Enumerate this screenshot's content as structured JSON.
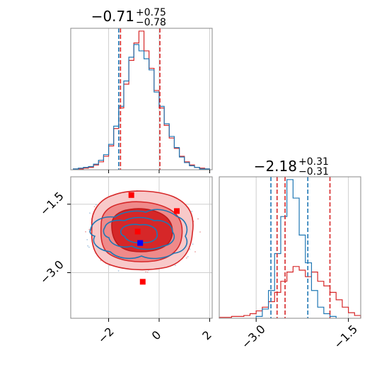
{
  "chart_data": [
    {
      "type": "histogram",
      "panel": "top-left",
      "title": {
        "base": "−0.71",
        "sup": "+0.75",
        "sub": "−0.78"
      },
      "xlim": [
        -3.5,
        2.1
      ],
      "x_ticks": [
        -2,
        0,
        2
      ],
      "x_tick_labels_shown": false,
      "grid": true,
      "quantile_lines": [
        {
          "series": "red",
          "values": [
            -1.53,
            0.03
          ]
        },
        {
          "series": "blue",
          "values": [
            -1.6
          ]
        }
      ],
      "series": [
        {
          "name": "red",
          "color": "#d62728",
          "style": "step",
          "x": [
            -3.3,
            -3.1,
            -2.9,
            -2.7,
            -2.5,
            -2.3,
            -2.1,
            -1.9,
            -1.7,
            -1.5,
            -1.3,
            -1.1,
            -0.9,
            -0.7,
            -0.5,
            -0.3,
            -0.1,
            0.1,
            0.3,
            0.5,
            0.7,
            0.9,
            1.1,
            1.3,
            1.5,
            1.7,
            1.9
          ],
          "y": [
            1,
            1,
            2,
            3,
            6,
            10,
            17,
            30,
            52,
            78,
            108,
            138,
            160,
            175,
            150,
            128,
            100,
            78,
            56,
            40,
            27,
            17,
            10,
            6,
            3,
            2,
            1
          ]
        },
        {
          "name": "blue",
          "color": "#1f77b4",
          "style": "step",
          "x": [
            -3.3,
            -3.1,
            -2.9,
            -2.7,
            -2.5,
            -2.3,
            -2.1,
            -1.9,
            -1.7,
            -1.5,
            -1.3,
            -1.1,
            -0.9,
            -0.7,
            -0.5,
            -0.3,
            -0.1,
            0.1,
            0.3,
            0.5,
            0.7,
            0.9,
            1.1,
            1.3,
            1.5,
            1.7,
            1.9
          ],
          "y": [
            1,
            2,
            3,
            4,
            7,
            12,
            19,
            32,
            55,
            80,
            112,
            142,
            158,
            150,
            140,
            126,
            98,
            80,
            58,
            42,
            28,
            16,
            9,
            5,
            3,
            1,
            1
          ]
        }
      ]
    },
    {
      "type": "histogram",
      "panel": "bottom-right",
      "title": {
        "base": "−2.18",
        "sup": "+0.31",
        "sub": "−0.31"
      },
      "xlim": [
        -3.6,
        -1.3
      ],
      "x_ticks": [
        -3.0,
        -1.5
      ],
      "x_tick_labels": [
        "−3.0",
        "−1.5"
      ],
      "grid": true,
      "quantile_lines": [
        {
          "series": "red",
          "values": [
            -2.66,
            -2.53,
            -1.8
          ]
        },
        {
          "series": "blue",
          "values": [
            -2.76,
            -2.16
          ]
        }
      ],
      "series": [
        {
          "name": "red",
          "color": "#d62728",
          "style": "step",
          "x": [
            -3.55,
            -3.45,
            -3.35,
            -3.25,
            -3.15,
            -3.05,
            -2.95,
            -2.85,
            -2.75,
            -2.65,
            -2.55,
            -2.45,
            -2.35,
            -2.25,
            -2.15,
            -2.05,
            -1.95,
            -1.85,
            -1.75,
            -1.65,
            -1.55,
            -1.45,
            -1.35
          ],
          "y": [
            1,
            1,
            2,
            2,
            3,
            5,
            8,
            12,
            18,
            28,
            40,
            50,
            56,
            52,
            45,
            50,
            40,
            35,
            28,
            20,
            12,
            6,
            3
          ]
        },
        {
          "name": "blue",
          "color": "#1f77b4",
          "style": "step",
          "x": [
            -2.95,
            -2.85,
            -2.75,
            -2.65,
            -2.55,
            -2.45,
            -2.35,
            -2.25,
            -2.15,
            -2.05,
            -1.95,
            -1.85,
            -1.75
          ],
          "y": [
            2,
            10,
            30,
            70,
            110,
            150,
            130,
            90,
            60,
            30,
            12,
            5,
            2
          ]
        }
      ]
    },
    {
      "type": "contour",
      "panel": "bottom-left",
      "xlim": [
        -3.5,
        2.1
      ],
      "ylim": [
        -4.0,
        -0.9
      ],
      "x_ticks": [
        -2,
        0,
        2
      ],
      "x_tick_labels": [
        "−2",
        "0",
        "2"
      ],
      "y_ticks": [
        -1.5,
        -3.0
      ],
      "y_tick_labels": [
        "−1.5",
        "−3.0"
      ],
      "grid": true,
      "series": [
        {
          "name": "red",
          "color": "#d62728",
          "center": [
            -0.71,
            -2.18
          ]
        },
        {
          "name": "blue",
          "color": "#1f77b4",
          "center": [
            -0.8,
            -2.2
          ]
        }
      ],
      "markers": [
        {
          "color": "#ff0000",
          "shape": "square",
          "x": -1.1,
          "y": -1.3
        },
        {
          "color": "#ff0000",
          "shape": "square",
          "x": 0.7,
          "y": -1.65
        },
        {
          "color": "#ff0000",
          "shape": "square",
          "x": -0.85,
          "y": -2.1
        },
        {
          "color": "#ff0000",
          "shape": "square",
          "x": -0.65,
          "y": -3.2
        },
        {
          "color": "#0000ff",
          "shape": "square",
          "x": -0.75,
          "y": -2.35
        }
      ]
    }
  ]
}
